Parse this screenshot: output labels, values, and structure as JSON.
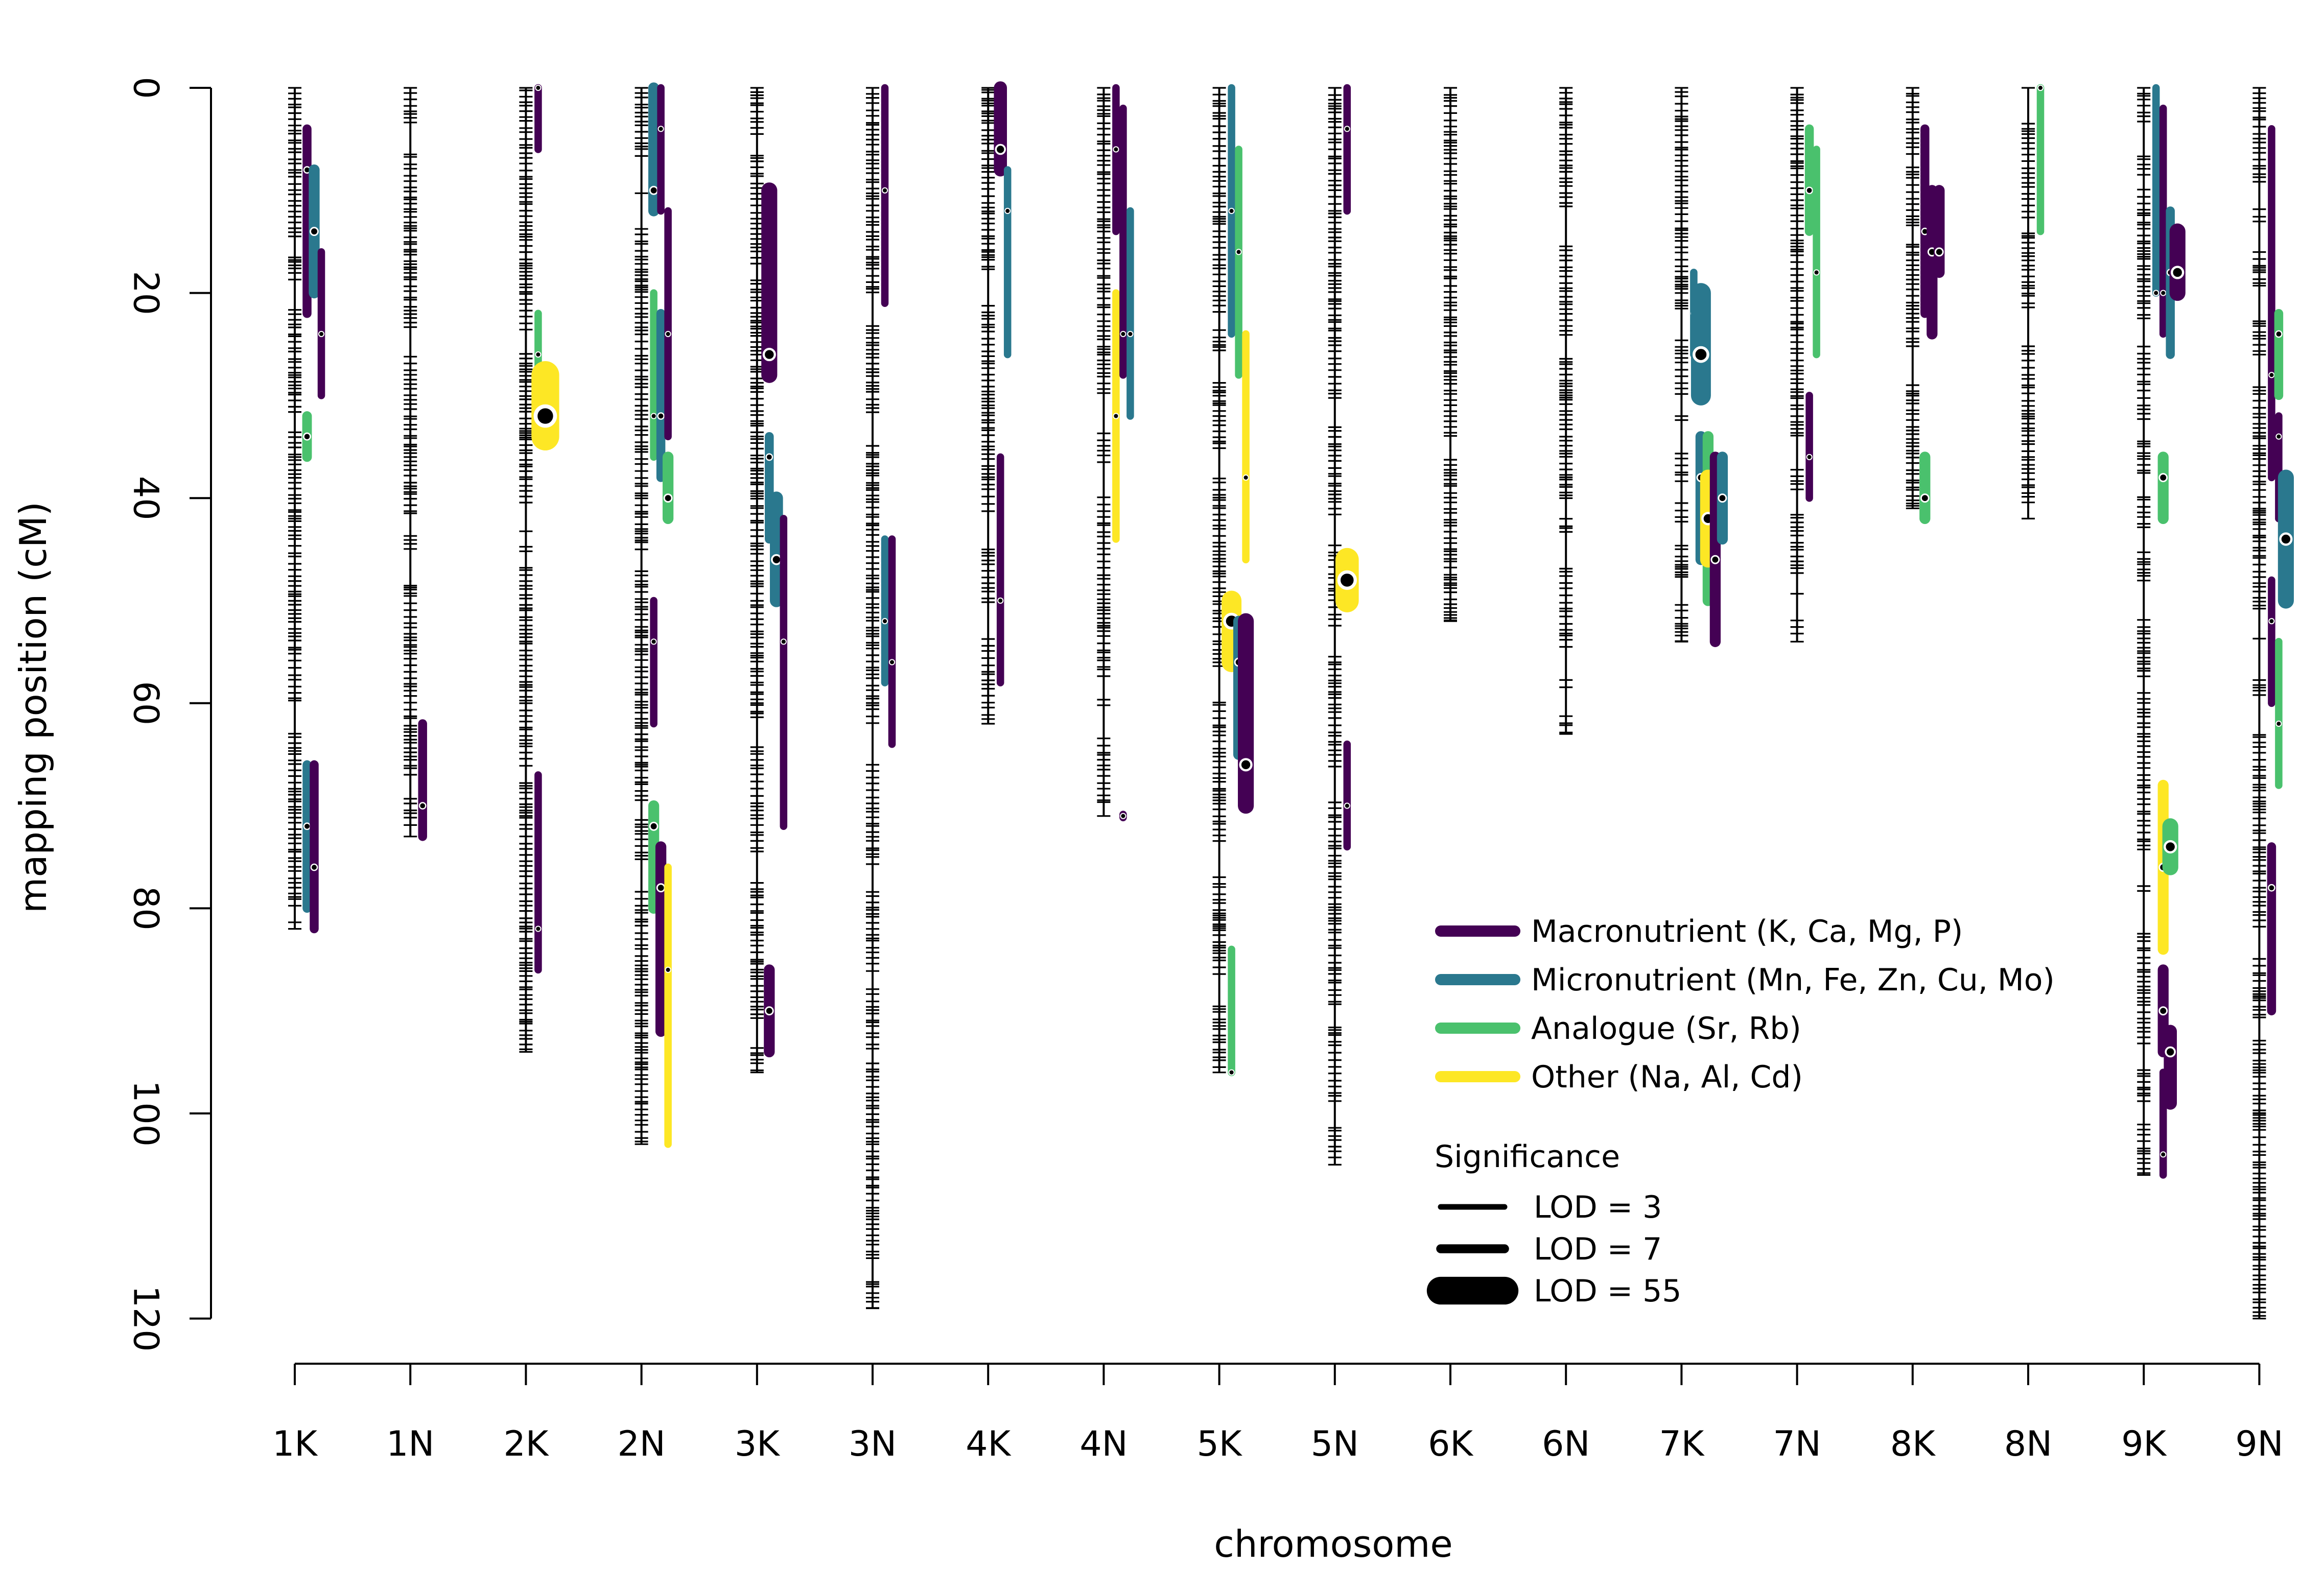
{
  "chart_data": {
    "type": "scatter",
    "xlabel": "chromosome",
    "ylabel": "mapping position (cM)",
    "ylim": [
      0,
      120
    ],
    "y_reversed": true,
    "y_ticks": [
      0,
      20,
      40,
      60,
      80,
      100,
      120
    ],
    "grid": false,
    "categories": [
      "1K",
      "1N",
      "2K",
      "2N",
      "3K",
      "3N",
      "4K",
      "4N",
      "5K",
      "5N",
      "6K",
      "6N",
      "7K",
      "7N",
      "8K",
      "8N",
      "9K",
      "9N"
    ],
    "chromosome_lengths": [
      82,
      73,
      94,
      103,
      96,
      119,
      62,
      71,
      96,
      105,
      52,
      63,
      54,
      54,
      41,
      42,
      106,
      120
    ],
    "legend": {
      "position": "bottom-right",
      "categories": [
        {
          "label": "Macronutrient (K, Ca, Mg, P)",
          "color": "#440154"
        },
        {
          "label": "Micronutrient (Mn, Fe, Zn, Cu, Mo)",
          "color": "#2a788e"
        },
        {
          "label": "Analogue (Sr, Rb)",
          "color": "#4ac16d"
        },
        {
          "label": "Other (Na, Al, Cd)",
          "color": "#fde725"
        }
      ],
      "significance_title": "Significance",
      "significance": [
        {
          "label": "LOD = 3",
          "lod": 3
        },
        {
          "label": "LOD = 7",
          "lod": 7
        },
        {
          "label": "LOD = 55",
          "lod": 55
        }
      ]
    },
    "qtl": [
      {
        "chr": "1K",
        "off": 1,
        "cat": 0,
        "y0": 4,
        "y1": 22,
        "peak": 8,
        "lod": 7
      },
      {
        "chr": "1K",
        "off": 2,
        "cat": 1,
        "y0": 8,
        "y1": 20,
        "peak": 14,
        "lod": 10
      },
      {
        "chr": "1K",
        "off": 3,
        "cat": 0,
        "y0": 16,
        "y1": 30,
        "peak": 24,
        "lod": 5
      },
      {
        "chr": "1K",
        "off": 1,
        "cat": 2,
        "y0": 32,
        "y1": 36,
        "peak": 34,
        "lod": 8
      },
      {
        "chr": "1K",
        "off": 1,
        "cat": 1,
        "y0": 66,
        "y1": 80,
        "peak": 72,
        "lod": 7
      },
      {
        "chr": "1K",
        "off": 2,
        "cat": 0,
        "y0": 66,
        "y1": 82,
        "peak": 76,
        "lod": 7
      },
      {
        "chr": "1N",
        "off": 1,
        "cat": 0,
        "y0": 62,
        "y1": 73,
        "peak": 70,
        "lod": 7
      },
      {
        "chr": "2K",
        "off": 1,
        "cat": 0,
        "y0": 0,
        "y1": 6,
        "peak": 0,
        "lod": 5
      },
      {
        "chr": "2K",
        "off": 1,
        "cat": 2,
        "y0": 22,
        "y1": 30,
        "peak": 26,
        "lod": 5
      },
      {
        "chr": "2K",
        "off": 2,
        "cat": 3,
        "y0": 28,
        "y1": 34,
        "peak": 32,
        "lod": 55
      },
      {
        "chr": "2K",
        "off": 1,
        "cat": 0,
        "y0": 67,
        "y1": 86,
        "peak": 82,
        "lod": 5
      },
      {
        "chr": "2N",
        "off": 1,
        "cat": 1,
        "y0": 0,
        "y1": 12,
        "peak": 10,
        "lod": 10
      },
      {
        "chr": "2N",
        "off": 2,
        "cat": 0,
        "y0": 0,
        "y1": 12,
        "peak": 4,
        "lod": 5
      },
      {
        "chr": "2N",
        "off": 1,
        "cat": 2,
        "y0": 20,
        "y1": 36,
        "peak": 32,
        "lod": 5
      },
      {
        "chr": "2N",
        "off": 2,
        "cat": 1,
        "y0": 22,
        "y1": 38,
        "peak": 32,
        "lod": 7
      },
      {
        "chr": "2N",
        "off": 3,
        "cat": 0,
        "y0": 12,
        "y1": 34,
        "peak": 24,
        "lod": 5
      },
      {
        "chr": "2N",
        "off": 3,
        "cat": 2,
        "y0": 36,
        "y1": 42,
        "peak": 40,
        "lod": 10
      },
      {
        "chr": "2N",
        "off": 1,
        "cat": 0,
        "y0": 50,
        "y1": 62,
        "peak": 54,
        "lod": 5
      },
      {
        "chr": "2N",
        "off": 1,
        "cat": 2,
        "y0": 70,
        "y1": 80,
        "peak": 72,
        "lod": 10
      },
      {
        "chr": "2N",
        "off": 2,
        "cat": 0,
        "y0": 74,
        "y1": 92,
        "peak": 78,
        "lod": 10
      },
      {
        "chr": "2N",
        "off": 3,
        "cat": 3,
        "y0": 76,
        "y1": 103,
        "peak": 86,
        "lod": 5
      },
      {
        "chr": "3K",
        "off": 1,
        "cat": 0,
        "y0": 10,
        "y1": 28,
        "peak": 26,
        "lod": 20
      },
      {
        "chr": "3K",
        "off": 1,
        "cat": 1,
        "y0": 34,
        "y1": 44,
        "peak": 36,
        "lod": 7
      },
      {
        "chr": "3K",
        "off": 2,
        "cat": 1,
        "y0": 40,
        "y1": 50,
        "peak": 46,
        "lod": 14
      },
      {
        "chr": "3K",
        "off": 3,
        "cat": 0,
        "y0": 42,
        "y1": 72,
        "peak": 54,
        "lod": 5
      },
      {
        "chr": "3K",
        "off": 1,
        "cat": 0,
        "y0": 86,
        "y1": 94,
        "peak": 90,
        "lod": 10
      },
      {
        "chr": "3N",
        "off": 1,
        "cat": 0,
        "y0": 0,
        "y1": 21,
        "peak": 10,
        "lod": 5
      },
      {
        "chr": "3N",
        "off": 1,
        "cat": 1,
        "y0": 44,
        "y1": 58,
        "peak": 52,
        "lod": 5
      },
      {
        "chr": "3N",
        "off": 2,
        "cat": 0,
        "y0": 44,
        "y1": 64,
        "peak": 56,
        "lod": 5
      },
      {
        "chr": "4K",
        "off": 1,
        "cat": 0,
        "y0": 0,
        "y1": 8,
        "peak": 6,
        "lod": 14
      },
      {
        "chr": "4K",
        "off": 2,
        "cat": 1,
        "y0": 8,
        "y1": 26,
        "peak": 12,
        "lod": 5
      },
      {
        "chr": "4K",
        "off": 1,
        "cat": 0,
        "y0": 36,
        "y1": 58,
        "peak": 50,
        "lod": 5
      },
      {
        "chr": "4N",
        "off": 1,
        "cat": 0,
        "y0": 0,
        "y1": 14,
        "peak": 6,
        "lod": 5
      },
      {
        "chr": "4N",
        "off": 1,
        "cat": 3,
        "y0": 20,
        "y1": 44,
        "peak": 32,
        "lod": 5
      },
      {
        "chr": "4N",
        "off": 2,
        "cat": 0,
        "y0": 2,
        "y1": 28,
        "peak": 24,
        "lod": 5
      },
      {
        "chr": "4N",
        "off": 3,
        "cat": 1,
        "y0": 12,
        "y1": 32,
        "peak": 24,
        "lod": 5
      },
      {
        "chr": "4N",
        "off": 2,
        "cat": 0,
        "y0": 71,
        "y1": 71,
        "peak": 71,
        "lod": 5
      },
      {
        "chr": "5K",
        "off": 1,
        "cat": 1,
        "y0": 0,
        "y1": 24,
        "peak": 12,
        "lod": 5
      },
      {
        "chr": "5K",
        "off": 2,
        "cat": 2,
        "y0": 6,
        "y1": 28,
        "peak": 16,
        "lod": 5
      },
      {
        "chr": "5K",
        "off": 3,
        "cat": 3,
        "y0": 24,
        "y1": 46,
        "peak": 38,
        "lod": 5
      },
      {
        "chr": "5K",
        "off": 1,
        "cat": 3,
        "y0": 50,
        "y1": 56,
        "peak": 52,
        "lod": 30
      },
      {
        "chr": "5K",
        "off": 2,
        "cat": 1,
        "y0": 52,
        "y1": 65,
        "peak": 56,
        "lod": 10
      },
      {
        "chr": "5K",
        "off": 3,
        "cat": 0,
        "y0": 52,
        "y1": 70,
        "peak": 66,
        "lod": 20
      },
      {
        "chr": "5K",
        "off": 1,
        "cat": 2,
        "y0": 84,
        "y1": 96,
        "peak": 96,
        "lod": 5
      },
      {
        "chr": "5N",
        "off": 1,
        "cat": 0,
        "y0": 0,
        "y1": 12,
        "peak": 4,
        "lod": 5
      },
      {
        "chr": "5N",
        "off": 1,
        "cat": 3,
        "y0": 46,
        "y1": 50,
        "peak": 48,
        "lod": 40
      },
      {
        "chr": "5N",
        "off": 1,
        "cat": 0,
        "y0": 64,
        "y1": 74,
        "peak": 70,
        "lod": 5
      },
      {
        "chr": "7K",
        "off": 1,
        "cat": 1,
        "y0": 18,
        "y1": 26,
        "peak": 22,
        "lod": 5
      },
      {
        "chr": "7K",
        "off": 2,
        "cat": 1,
        "y0": 20,
        "y1": 30,
        "peak": 26,
        "lod": 30
      },
      {
        "chr": "7K",
        "off": 2,
        "cat": 1,
        "y0": 34,
        "y1": 46,
        "peak": 38,
        "lod": 10
      },
      {
        "chr": "7K",
        "off": 3,
        "cat": 2,
        "y0": 34,
        "y1": 50,
        "peak": 46,
        "lod": 10
      },
      {
        "chr": "7K",
        "off": 3,
        "cat": 3,
        "y0": 38,
        "y1": 46,
        "peak": 42,
        "lod": 20
      },
      {
        "chr": "7K",
        "off": 4,
        "cat": 0,
        "y0": 36,
        "y1": 54,
        "peak": 46,
        "lod": 10
      },
      {
        "chr": "7K",
        "off": 5,
        "cat": 1,
        "y0": 36,
        "y1": 44,
        "peak": 40,
        "lod": 10
      },
      {
        "chr": "7N",
        "off": 1,
        "cat": 2,
        "y0": 4,
        "y1": 14,
        "peak": 10,
        "lod": 7
      },
      {
        "chr": "7N",
        "off": 2,
        "cat": 2,
        "y0": 6,
        "y1": 26,
        "peak": 18,
        "lod": 5
      },
      {
        "chr": "7N",
        "off": 1,
        "cat": 0,
        "y0": 30,
        "y1": 40,
        "peak": 36,
        "lod": 5
      },
      {
        "chr": "8K",
        "off": 1,
        "cat": 0,
        "y0": 4,
        "y1": 22,
        "peak": 14,
        "lod": 7
      },
      {
        "chr": "8K",
        "off": 2,
        "cat": 0,
        "y0": 10,
        "y1": 24,
        "peak": 16,
        "lod": 10
      },
      {
        "chr": "8K",
        "off": 3,
        "cat": 0,
        "y0": 10,
        "y1": 18,
        "peak": 16,
        "lod": 10
      },
      {
        "chr": "8K",
        "off": 1,
        "cat": 2,
        "y0": 36,
        "y1": 42,
        "peak": 40,
        "lod": 10
      },
      {
        "chr": "8N",
        "off": 1,
        "cat": 2,
        "y0": 0,
        "y1": 14,
        "peak": 0,
        "lod": 5
      },
      {
        "chr": "9K",
        "off": 1,
        "cat": 1,
        "y0": 0,
        "y1": 20,
        "peak": 20,
        "lod": 5
      },
      {
        "chr": "9K",
        "off": 2,
        "cat": 0,
        "y0": 2,
        "y1": 24,
        "peak": 20,
        "lod": 5
      },
      {
        "chr": "9K",
        "off": 3,
        "cat": 1,
        "y0": 12,
        "y1": 26,
        "peak": 18,
        "lod": 7
      },
      {
        "chr": "9K",
        "off": 4,
        "cat": 0,
        "y0": 14,
        "y1": 20,
        "peak": 18,
        "lod": 20
      },
      {
        "chr": "9K",
        "off": 2,
        "cat": 2,
        "y0": 36,
        "y1": 42,
        "peak": 38,
        "lod": 10
      },
      {
        "chr": "9K",
        "off": 2,
        "cat": 3,
        "y0": 68,
        "y1": 84,
        "peak": 76,
        "lod": 10
      },
      {
        "chr": "9K",
        "off": 3,
        "cat": 2,
        "y0": 72,
        "y1": 76,
        "peak": 74,
        "lod": 20
      },
      {
        "chr": "9K",
        "off": 2,
        "cat": 0,
        "y0": 86,
        "y1": 94,
        "peak": 90,
        "lod": 10
      },
      {
        "chr": "9K",
        "off": 3,
        "cat": 0,
        "y0": 92,
        "y1": 99,
        "peak": 94,
        "lod": 14
      },
      {
        "chr": "9K",
        "off": 2,
        "cat": 0,
        "y0": 96,
        "y1": 106,
        "peak": 104,
        "lod": 5
      },
      {
        "chr": "9N",
        "off": 1,
        "cat": 0,
        "y0": 4,
        "y1": 38,
        "peak": 28,
        "lod": 5
      },
      {
        "chr": "9N",
        "off": 2,
        "cat": 2,
        "y0": 22,
        "y1": 30,
        "peak": 24,
        "lod": 7
      },
      {
        "chr": "9N",
        "off": 2,
        "cat": 0,
        "y0": 32,
        "y1": 42,
        "peak": 34,
        "lod": 5
      },
      {
        "chr": "9N",
        "off": 3,
        "cat": 1,
        "y0": 38,
        "y1": 50,
        "peak": 44,
        "lod": 20
      },
      {
        "chr": "9N",
        "off": 1,
        "cat": 0,
        "y0": 48,
        "y1": 60,
        "peak": 52,
        "lod": 5
      },
      {
        "chr": "9N",
        "off": 2,
        "cat": 2,
        "y0": 54,
        "y1": 68,
        "peak": 62,
        "lod": 5
      },
      {
        "chr": "9N",
        "off": 1,
        "cat": 0,
        "y0": 74,
        "y1": 90,
        "peak": 78,
        "lod": 7
      }
    ]
  }
}
